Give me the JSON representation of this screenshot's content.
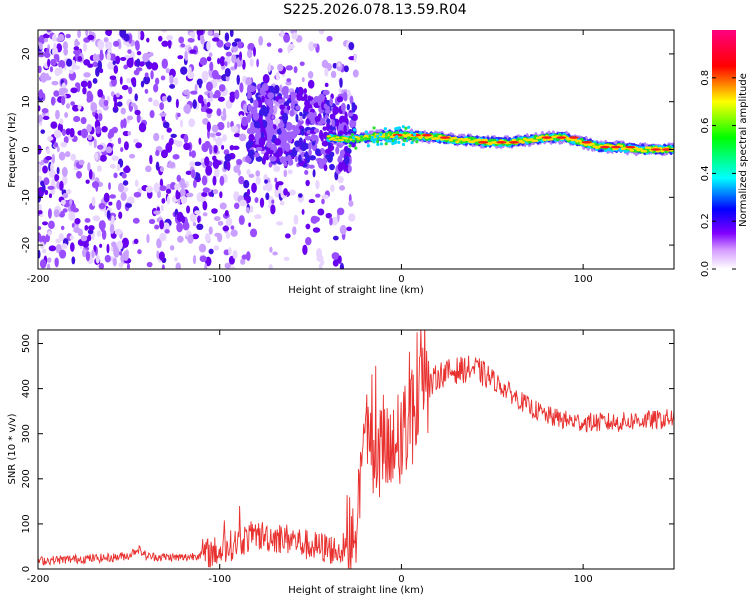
{
  "title": "S225.2026.078.13.59.R04",
  "chart_data": [
    {
      "type": "heatmap",
      "xlabel": "Height of straight line (km)",
      "ylabel": "Frequency (Hz)",
      "xlim": [
        -200,
        150
      ],
      "ylim": [
        -25,
        25
      ],
      "xticks": [
        -200,
        -100,
        0,
        100
      ],
      "yticks": [
        -20,
        -10,
        0,
        10,
        20
      ],
      "colorbar": {
        "label": "Normalized spectral amplitude",
        "range": [
          0,
          1
        ],
        "ticks": [
          0.0,
          0.2,
          0.4,
          0.6,
          0.8
        ],
        "tick_labels": [
          "0.0",
          "0.2",
          "0.4",
          "0.6",
          "0.8"
        ],
        "colormap": [
          "#ffffff",
          "#8000ff",
          "#0000ff",
          "#00ffff",
          "#00ff00",
          "#ffff00",
          "#ff0000",
          "#ff0080"
        ]
      },
      "ridge": {
        "x": [
          -80,
          -60,
          -40,
          -30,
          -20,
          -10,
          0,
          10,
          20,
          30,
          40,
          50,
          60,
          70,
          80,
          90,
          100,
          110,
          120,
          130,
          140,
          150
        ],
        "frequency": [
          4,
          3,
          2.5,
          2,
          2.5,
          3,
          3,
          2.8,
          2.5,
          2,
          1.8,
          1.5,
          1.5,
          2,
          2.5,
          2.5,
          1.5,
          0.5,
          0.5,
          0,
          0,
          0
        ]
      }
    },
    {
      "type": "line",
      "xlabel": "Height of straight line (km)",
      "ylabel": "SNR (10 * v/v)",
      "xlim": [
        -200,
        150
      ],
      "ylim": [
        0,
        530
      ],
      "xticks": [
        -200,
        -100,
        0,
        100
      ],
      "yticks": [
        0,
        100,
        200,
        300,
        400,
        500
      ],
      "line_color": "#e8312f",
      "series": [
        {
          "x": [
            -200,
            -180,
            -160,
            -150,
            -145,
            -140,
            -120,
            -100,
            -90,
            -80,
            -70,
            -60,
            -50,
            -40,
            -35,
            -30,
            -25,
            -22,
            -20,
            -15,
            -10,
            -5,
            0,
            5,
            10,
            15,
            20,
            30,
            40,
            50,
            60,
            70,
            80,
            90,
            100,
            110,
            120,
            130,
            140,
            150
          ],
          "y": [
            18,
            22,
            25,
            30,
            45,
            28,
            25,
            40,
            60,
            75,
            70,
            65,
            50,
            45,
            40,
            50,
            120,
            260,
            300,
            280,
            250,
            240,
            280,
            340,
            380,
            400,
            430,
            440,
            445,
            420,
            390,
            360,
            340,
            330,
            325,
            325,
            325,
            330,
            330,
            335
          ]
        }
      ]
    }
  ]
}
